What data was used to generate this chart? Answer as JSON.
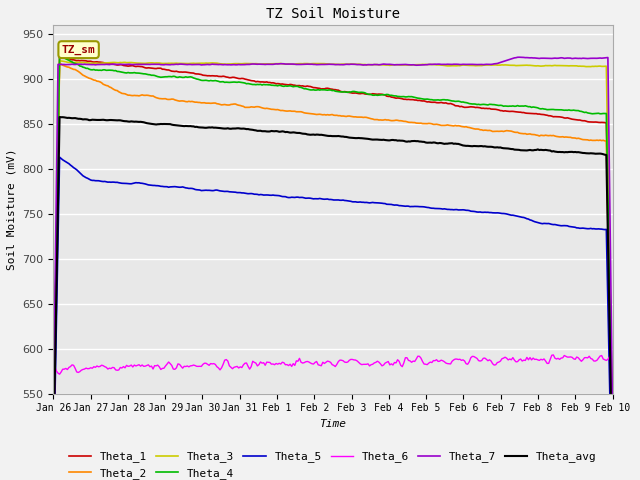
{
  "title": "TZ Soil Moisture",
  "xlabel": "Time",
  "ylabel": "Soil Moisture (mV)",
  "ylim": [
    550,
    960
  ],
  "yticks": [
    550,
    600,
    650,
    700,
    750,
    800,
    850,
    900,
    950
  ],
  "x_labels": [
    "Jan 26",
    "Jan 27",
    "Jan 28",
    "Jan 29",
    "Jan 30",
    "Jan 31",
    "Feb 1",
    "Feb 2",
    "Feb 3",
    "Feb 4",
    "Feb 5",
    "Feb 6",
    "Feb 7",
    "Feb 8",
    "Feb 9",
    "Feb 10"
  ],
  "legend_items": [
    "Theta_1",
    "Theta_2",
    "Theta_3",
    "Theta_4",
    "Theta_5",
    "Theta_6",
    "Theta_7",
    "Theta_avg"
  ],
  "colors": {
    "Theta_1": "#cc0000",
    "Theta_2": "#ff8800",
    "Theta_3": "#cccc00",
    "Theta_4": "#00bb00",
    "Theta_5": "#0000cc",
    "Theta_6": "#ff00ff",
    "Theta_7": "#9900cc",
    "Theta_avg": "#000000"
  },
  "fig_bg": "#f2f2f2",
  "plot_bg": "#e8e8e8",
  "annotation_label": "TZ_sm",
  "annotation_color": "#990000",
  "annotation_bg": "#ffffcc",
  "annotation_edge": "#999900"
}
